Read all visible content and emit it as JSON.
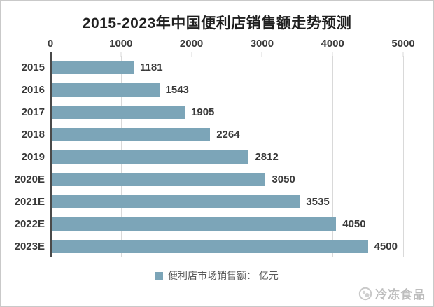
{
  "chart_data": {
    "type": "bar",
    "orientation": "horizontal",
    "title": "2015-2023年中国便利店销售额走势预测",
    "categories": [
      "2015",
      "2016",
      "2017",
      "2018",
      "2019",
      "2020E",
      "2021E",
      "2022E",
      "2023E"
    ],
    "values": [
      1181,
      1543,
      1905,
      2264,
      2812,
      3050,
      3535,
      4050,
      4500
    ],
    "xlim": [
      0,
      5000
    ],
    "x_ticks": [
      0,
      1000,
      2000,
      3000,
      4000,
      5000
    ],
    "grid": true,
    "x_axis_position": "top",
    "legend": {
      "label": "便利店市场销售额： 亿元",
      "position": "bottom"
    },
    "colors": {
      "bar": "#7ca5b8",
      "gridline": "#d9d9d9",
      "axis_line": "#4a4a4a",
      "labels": "#3a3a3a",
      "title": "#1f1f1f",
      "legend_text": "#595959",
      "frame_border": "#c9c9c9"
    }
  },
  "watermark": {
    "icon": "frozen-food-logo",
    "text": "冷冻食品",
    "color": "#bdbdbd"
  }
}
